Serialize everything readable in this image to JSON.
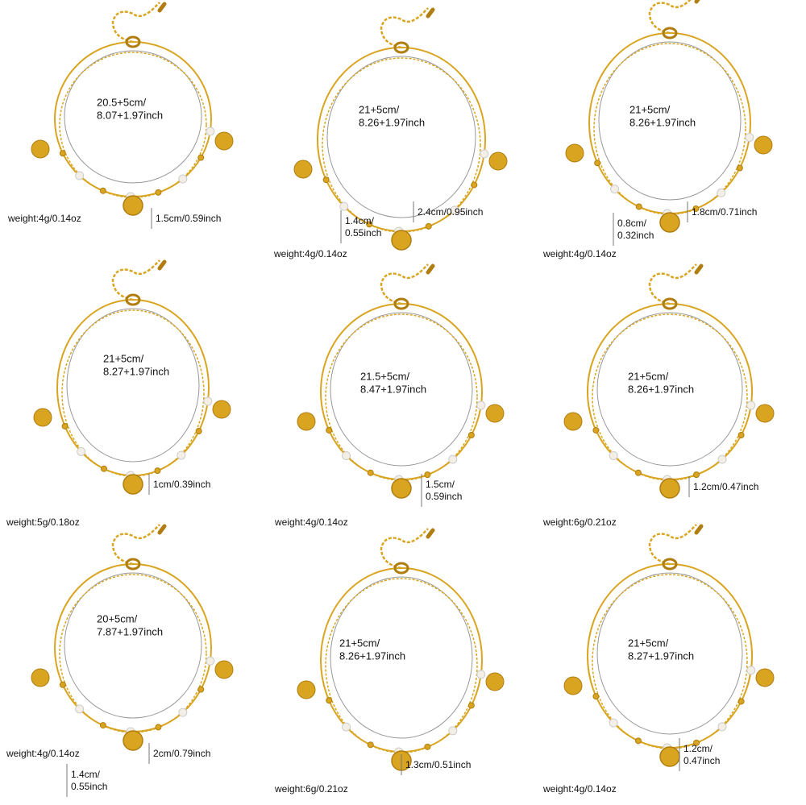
{
  "panels": [
    {
      "size": [
        "20.5+5cm/",
        "8.07+1.97inch"
      ],
      "measures": [
        [
          "1.5cm/0.59inch"
        ]
      ],
      "weight": "weight:4g/0.14oz"
    },
    {
      "size": [
        "21+5cm/",
        "8.26+1.97inch"
      ],
      "measures": [
        [
          "2.4cm/0.95inch"
        ],
        [
          "1.4cm/",
          "0.55inch"
        ]
      ],
      "weight": "weight:4g/0.14oz"
    },
    {
      "size": [
        "21+5cm/",
        "8.26+1.97inch"
      ],
      "measures": [
        [
          "1.8cm/0.71inch"
        ],
        [
          "0.8cm/",
          "0.32inch"
        ]
      ],
      "weight": "weight:4g/0.14oz"
    },
    {
      "size": [
        "21+5cm/",
        "8.27+1.97inch"
      ],
      "measures": [
        [
          "1cm/0.39inch"
        ]
      ],
      "weight": "weight:5g/0.18oz"
    },
    {
      "size": [
        "21.5+5cm/",
        "8.47+1.97inch"
      ],
      "measures": [
        [
          "1.5cm/",
          "0.59inch"
        ]
      ],
      "weight": "weight:4g/0.14oz"
    },
    {
      "size": [
        "21+5cm/",
        "8.26+1.97inch"
      ],
      "measures": [
        [
          "1.2cm/0.47inch"
        ]
      ],
      "weight": "weight:6g/0.21oz"
    },
    {
      "size": [
        "20+5cm/",
        "7.87+1.97inch"
      ],
      "measures": [
        [
          "2cm/0.79inch"
        ],
        [
          "1.4cm/",
          "0.55inch"
        ]
      ],
      "weight": "weight:4g/0.14oz"
    },
    {
      "size": [
        "21+5cm/",
        "8.26+1.97inch"
      ],
      "measures": [
        [
          "1.3cm/0.51inch"
        ]
      ],
      "weight": "weight:6g/0.21oz"
    },
    {
      "size": [
        "21+5cm/",
        "8.27+1.97inch"
      ],
      "measures": [
        [
          "1.2cm/",
          "0.47inch"
        ]
      ],
      "weight": "weight:4g/0.14oz"
    }
  ]
}
